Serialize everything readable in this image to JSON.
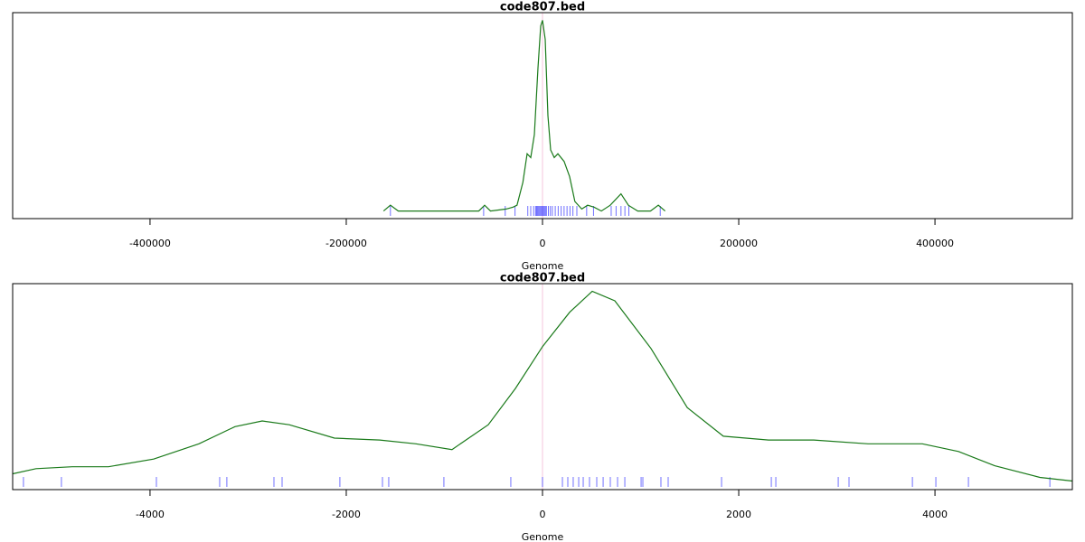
{
  "chart_data": [
    {
      "type": "density",
      "title": "code807.bed",
      "xlabel": "Genome",
      "xlim": [
        -540000,
        540000
      ],
      "xticks": [
        -400000,
        -200000,
        0,
        200000,
        400000
      ],
      "ylim": [
        -0.04,
        1.04
      ],
      "vline": 0,
      "vline_color": "#f4c6dc",
      "series": [
        {
          "color": "#1a7a1a",
          "x": [
            -162000,
            -155000,
            -147000,
            -65000,
            -59000,
            -53000,
            -37000,
            -30000,
            -26000,
            -20000,
            -15700,
            -12000,
            -8300,
            -4600,
            -1800,
            0,
            2800,
            5500,
            8300,
            12000,
            15700,
            22000,
            27600,
            33000,
            40000,
            46000,
            52500,
            60000,
            69000,
            80000,
            87500,
            97000,
            110000,
            118000,
            125000
          ],
          "values": [
            0,
            0.03,
            0,
            0,
            0.03,
            0,
            0.01,
            0.02,
            0.03,
            0.15,
            0.3,
            0.28,
            0.4,
            0.75,
            0.97,
            1.0,
            0.9,
            0.5,
            0.32,
            0.28,
            0.3,
            0.26,
            0.18,
            0.05,
            0.01,
            0.03,
            0.02,
            0,
            0.03,
            0.09,
            0.03,
            0,
            0,
            0.03,
            0
          ]
        }
      ],
      "rug": {
        "color": "#3333ff",
        "x": [
          -155000,
          -60000,
          -38000,
          -28000,
          -15000,
          -12000,
          -9000,
          -7000,
          -6000,
          -5000,
          -4000,
          -3000,
          -2000,
          -1000,
          0,
          1000,
          2000,
          3000,
          4000,
          6000,
          8000,
          10000,
          13000,
          16000,
          19000,
          22000,
          25000,
          28000,
          31000,
          35000,
          45000,
          52000,
          70000,
          75000,
          80000,
          84000,
          88000,
          120000
        ]
      }
    },
    {
      "type": "density",
      "title": "code807.bed",
      "xlabel": "Genome",
      "xlim": [
        -5400,
        5400
      ],
      "xticks": [
        -4000,
        -2000,
        0,
        2000,
        4000
      ],
      "ylim": [
        -0.04,
        1.04
      ],
      "vline": 0,
      "vline_color": "#f4c6dc",
      "series": [
        {
          "color": "#1a7a1a",
          "x": [
            -5400,
            -5161,
            -4793,
            -4424,
            -3963,
            -3502,
            -3134,
            -2857,
            -2581,
            -2120,
            -1659,
            -1290,
            -922,
            -553,
            -276,
            0,
            276,
            507,
            737,
            1106,
            1475,
            1843,
            2304,
            2765,
            3318,
            3871,
            4240,
            4608,
            5069,
            5400
          ],
          "values": [
            0.043,
            0.07,
            0.08,
            0.08,
            0.12,
            0.2,
            0.29,
            0.32,
            0.3,
            0.23,
            0.22,
            0.2,
            0.17,
            0.3,
            0.49,
            0.71,
            0.89,
            1.0,
            0.95,
            0.7,
            0.39,
            0.24,
            0.22,
            0.22,
            0.2,
            0.2,
            0.16,
            0.085,
            0.024,
            0.005
          ]
        }
      ],
      "rug": {
        "color": "#3333ff",
        "x": [
          -5290,
          -4903,
          -3935,
          -3290,
          -3217,
          -2737,
          -2654,
          -2065,
          -1631,
          -1567,
          -1005,
          -323,
          0,
          203,
          258,
          313,
          369,
          415,
          479,
          553,
          618,
          691,
          765,
          839,
          1005,
          1023,
          1207,
          1281,
          1825,
          2332,
          2378,
          3014,
          3124,
          3770,
          4009,
          4341,
          5171
        ]
      }
    }
  ]
}
